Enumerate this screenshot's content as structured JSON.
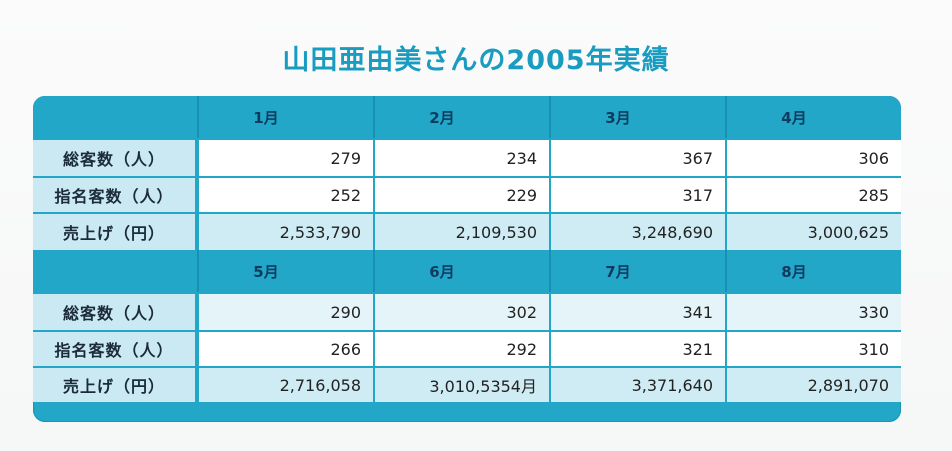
{
  "title": "山田亜由美さんの2005年実績",
  "row_labels": [
    "総客数（人）",
    "指名客数（人）",
    "売上げ（円）"
  ],
  "blocks": [
    {
      "months": [
        "1月",
        "2月",
        "3月",
        "4月"
      ],
      "rows": [
        [
          "279",
          "234",
          "367",
          "306"
        ],
        [
          "252",
          "229",
          "317",
          "285"
        ],
        [
          "2,533,790",
          "2,109,530",
          "3,248,690",
          "3,000,625"
        ]
      ]
    },
    {
      "months": [
        "5月",
        "6月",
        "7月",
        "8月"
      ],
      "rows": [
        [
          "290",
          "302",
          "341",
          "330"
        ],
        [
          "266",
          "292",
          "321",
          "310"
        ],
        [
          "2,716,058",
          "3,010,5354月",
          "3,371,640",
          "2,891,070"
        ]
      ]
    }
  ],
  "colors": {
    "title": "#1a9cc1",
    "header_bg": "#22a7c8",
    "label_bg": "#cbe9f3",
    "cell_bg": "#ffffff",
    "cell_alt_bg": "#e4f4f9"
  }
}
